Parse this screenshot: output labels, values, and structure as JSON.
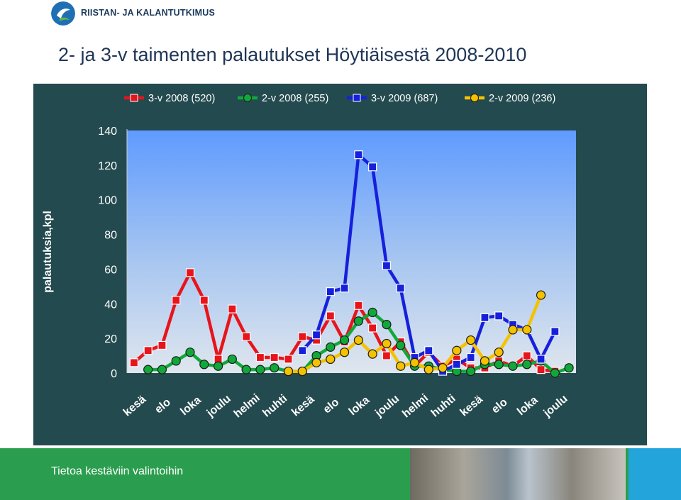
{
  "header": {
    "logo_text": "RIISTAN- JA KALANTUTKIMUS"
  },
  "slide": {
    "title": "2- ja 3-v taimenten palautukset Höytiäisestä 2008-2010"
  },
  "footer": {
    "text": "Tietoa kestäviin valintoihin"
  },
  "colors": {
    "panel_bg": "#234a4f",
    "footer_green": "#2a9e4e"
  },
  "chart_data": {
    "type": "line",
    "title": "",
    "xlabel": "",
    "ylabel": "palautuksia,kpl",
    "ylim": [
      0,
      140
    ],
    "yticks": [
      0,
      20,
      40,
      60,
      80,
      100,
      120,
      140
    ],
    "grid": false,
    "legend_position": "top",
    "x_tick_labels": [
      "kesä",
      "elo",
      "loka",
      "joulu",
      "helmi",
      "huhti",
      "kesä",
      "elo",
      "loka",
      "joulu",
      "helmi",
      "huhti",
      "kesä",
      "elo",
      "loka",
      "joulu"
    ],
    "x_count": 32,
    "series": [
      {
        "name": "3-v 2008 (520)",
        "color": "#e8141b",
        "marker": "square",
        "start": 0,
        "values": [
          6,
          13,
          16,
          42,
          58,
          42,
          8,
          37,
          21,
          9,
          9,
          8,
          21,
          19,
          33,
          18,
          39,
          26,
          10,
          18,
          4,
          12,
          4,
          8,
          3,
          3,
          7,
          4,
          10,
          2,
          1
        ]
      },
      {
        "name": "2-v 2008 (255)",
        "color": "#11a83a",
        "marker": "circle",
        "start": 1,
        "values": [
          2,
          2,
          7,
          12,
          5,
          4,
          8,
          2,
          2,
          3,
          1,
          1,
          10,
          15,
          19,
          30,
          35,
          28,
          16,
          4,
          4,
          2,
          1,
          1,
          5,
          5,
          4,
          5,
          7,
          0,
          3
        ]
      },
      {
        "name": "3-v 2009 (687)",
        "color": "#1620dc",
        "marker": "square",
        "start": 12,
        "values": [
          13,
          22,
          47,
          49,
          126,
          119,
          62,
          49,
          9,
          13,
          1,
          5,
          9,
          32,
          33,
          28,
          25,
          8,
          24
        ]
      },
      {
        "name": "2-v 2009 (236)",
        "color": "#f5c200",
        "marker": "circle",
        "start": 11,
        "values": [
          1,
          1,
          6,
          8,
          12,
          19,
          11,
          17,
          4,
          6,
          2,
          3,
          13,
          19,
          7,
          12,
          25,
          25,
          45
        ]
      }
    ]
  }
}
